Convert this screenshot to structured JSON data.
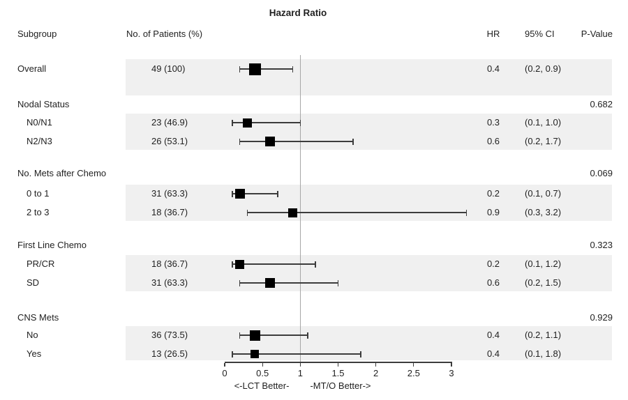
{
  "title": "Hazard Ratio",
  "columns": {
    "subgroup": "Subgroup",
    "patients": "No. of Patients (%)",
    "hr": "HR",
    "ci": "95% CI",
    "pvalue": "P-Value"
  },
  "colors": {
    "band": "#f0f0f0",
    "marker": "#000000",
    "line": "#3c3c3c",
    "ref": "#a6a6a6",
    "text": "#1f1f1f"
  },
  "chart_data": {
    "type": "forest",
    "title": "Hazard Ratio",
    "xlim": [
      0,
      3
    ],
    "ref_line": 1,
    "grid": false,
    "axis": {
      "ticks": [
        0,
        0.5,
        1,
        1.5,
        2,
        2.5,
        3
      ],
      "tick_labels": [
        "0",
        "0.5",
        "1",
        "1.5",
        "2",
        "2.5",
        "3"
      ],
      "left_label": "<-LCT Better-",
      "right_label": "-MT/O Better->"
    },
    "sections": [
      {
        "header": null,
        "pvalue": null,
        "rows": [
          {
            "label": "Overall",
            "indent": false,
            "patients": "49 (100)",
            "n": 49,
            "hr": 0.4,
            "hr_text": "0.4",
            "lower": 0.2,
            "upper": 0.9,
            "ci_text": "(0.2, 0.9)"
          }
        ]
      },
      {
        "header": "Nodal Status",
        "pvalue": "0.682",
        "rows": [
          {
            "label": "N0/N1",
            "indent": true,
            "patients": "23 (46.9)",
            "n": 23,
            "hr": 0.3,
            "hr_text": "0.3",
            "lower": 0.1,
            "upper": 1.0,
            "ci_text": "(0.1, 1.0)"
          },
          {
            "label": "N2/N3",
            "indent": true,
            "patients": "26 (53.1)",
            "n": 26,
            "hr": 0.6,
            "hr_text": "0.6",
            "lower": 0.2,
            "upper": 1.7,
            "ci_text": "(0.2, 1.7)"
          }
        ]
      },
      {
        "header": "No. Mets after Chemo",
        "pvalue": "0.069",
        "rows": [
          {
            "label": "0 to 1",
            "indent": true,
            "patients": "31 (63.3)",
            "n": 31,
            "hr": 0.2,
            "hr_text": "0.2",
            "lower": 0.1,
            "upper": 0.7,
            "ci_text": "(0.1, 0.7)"
          },
          {
            "label": "2 to 3",
            "indent": true,
            "patients": "18 (36.7)",
            "n": 18,
            "hr": 0.9,
            "hr_text": "0.9",
            "lower": 0.3,
            "upper": 3.2,
            "ci_text": "(0.3, 3.2)"
          }
        ]
      },
      {
        "header": "First Line Chemo",
        "pvalue": "0.323",
        "rows": [
          {
            "label": "PR/CR",
            "indent": true,
            "patients": "18 (36.7)",
            "n": 18,
            "hr": 0.2,
            "hr_text": "0.2",
            "lower": 0.1,
            "upper": 1.2,
            "ci_text": "(0.1, 1.2)"
          },
          {
            "label": "SD",
            "indent": true,
            "patients": "31 (63.3)",
            "n": 31,
            "hr": 0.6,
            "hr_text": "0.6",
            "lower": 0.2,
            "upper": 1.5,
            "ci_text": "(0.2, 1.5)"
          }
        ]
      },
      {
        "header": "CNS Mets",
        "pvalue": "0.929",
        "rows": [
          {
            "label": "No",
            "indent": true,
            "patients": "36 (73.5)",
            "n": 36,
            "hr": 0.4,
            "hr_text": "0.4",
            "lower": 0.2,
            "upper": 1.1,
            "ci_text": "(0.2, 1.1)"
          },
          {
            "label": "Yes",
            "indent": true,
            "patients": "13 (26.5)",
            "n": 13,
            "hr": 0.4,
            "hr_text": "0.4",
            "lower": 0.1,
            "upper": 1.8,
            "ci_text": "(0.1, 1.8)"
          }
        ]
      }
    ]
  }
}
